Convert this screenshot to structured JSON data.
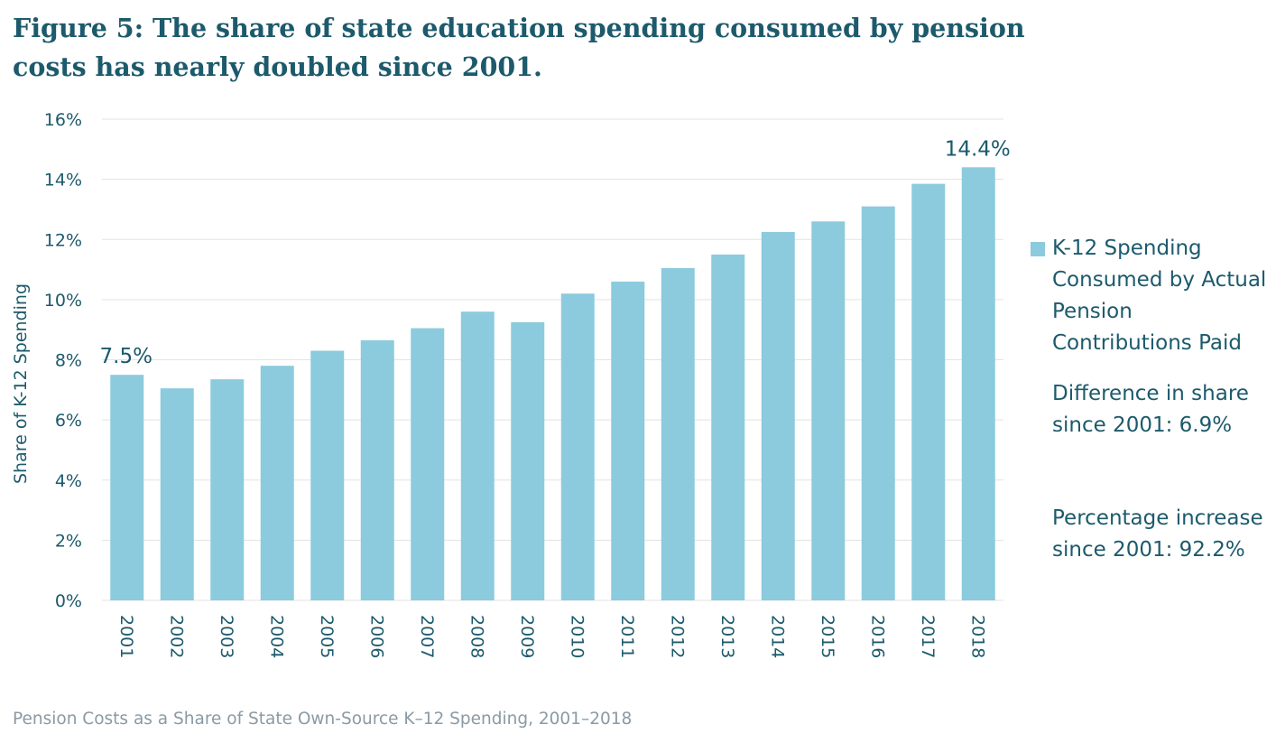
{
  "title": "Figure 5:  The share of state education spending consumed by pension costs has nearly doubled since 2001.",
  "chart_data": {
    "type": "bar",
    "categories": [
      "2001",
      "2002",
      "2003",
      "2004",
      "2005",
      "2006",
      "2007",
      "2008",
      "2009",
      "2010",
      "2011",
      "2012",
      "2013",
      "2014",
      "2015",
      "2016",
      "2017",
      "2018"
    ],
    "series": [
      {
        "name": "K-12 Spending Consumed by Actual Pension Contributions Paid",
        "values": [
          7.5,
          7.05,
          7.35,
          7.8,
          8.3,
          8.65,
          9.05,
          9.6,
          9.25,
          10.2,
          10.6,
          11.05,
          11.5,
          12.25,
          12.6,
          13.1,
          13.85,
          14.4
        ],
        "color": "#8ccbdd"
      }
    ],
    "ylabel": "Share of K-12 Spending",
    "ylim": [
      0,
      16
    ],
    "yticks": [
      "0%",
      "2%",
      "4%",
      "6%",
      "8%",
      "10%",
      "12%",
      "14%",
      "16%"
    ],
    "data_labels": [
      {
        "category": "2001",
        "text": "7.5%"
      },
      {
        "category": "2018",
        "text": "14.4%"
      }
    ],
    "grid": true,
    "legend_position": "right"
  },
  "notes": {
    "difference": "Difference in share since 2001: 6.9%",
    "percentage": "Percentage increase since 2001: 92.2%"
  },
  "source": "Pension Costs as a Share of State Own-Source K–12 Spending, 2001–2018",
  "colors": {
    "title": "#1c5a6c",
    "bar": "#8ccbdd",
    "grid": "#e3e3e3",
    "source": "#8a9aa4"
  }
}
